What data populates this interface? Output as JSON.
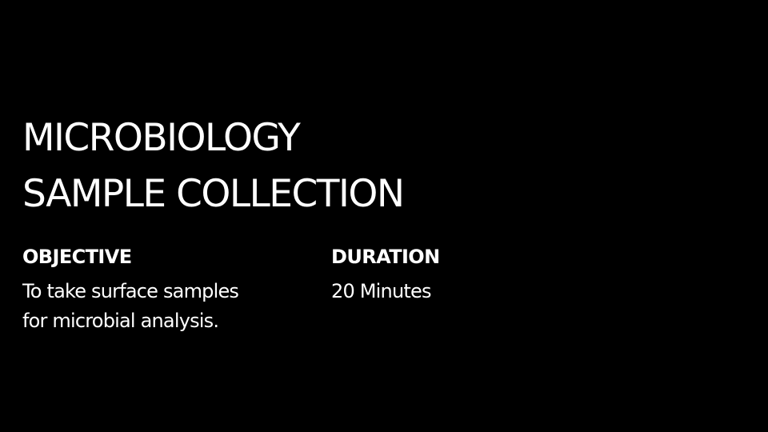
{
  "slide": {
    "background_color": "#000000",
    "text_color": "#ffffff",
    "title": {
      "line1": "MICROBIOLOGY",
      "line2": "SAMPLE COLLECTION"
    },
    "objective": {
      "label": "OBJECTIVE",
      "text_line1": "To take surface samples",
      "text_line2": "for microbial analysis."
    },
    "duration": {
      "label": "DURATION",
      "text": "20 Minutes"
    }
  }
}
